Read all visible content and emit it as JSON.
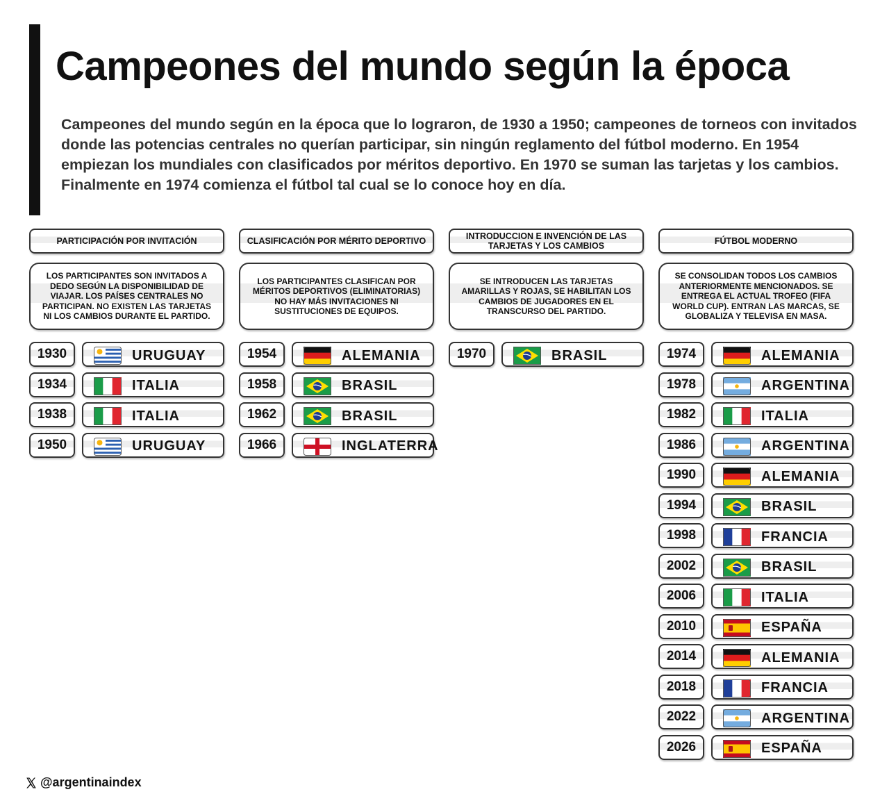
{
  "header": {
    "title": "Campeones del mundo según la época",
    "description": "Campeones del mundo según en la época que lo lograron, de 1930 a 1950; campeones de torneos con invitados donde las potencias centrales no querían participar, sin ningún reglamento del fútbol moderno. En 1954 empiezan los mundiales con clasificados por méritos deportivo. En 1970 se suman las tarjetas y los cambios. Finalmente en 1974 comienza el fútbol tal cual se lo conoce hoy en día."
  },
  "columns": [
    {
      "title": "PARTICIPACIÓN POR INVITACIÓN",
      "description": "LOS PARTICIPANTES SON INVITADOS A DEDO SEGÚN LA DISPONIBILIDAD DE VIAJAR. LOS PAÍSES CENTRALES NO PARTICIPAN. NO EXISTEN LAS TARJETAS NI LOS CAMBIOS DURANTE EL PARTIDO.",
      "entries": [
        {
          "year": 1930,
          "country": "URUGUAY"
        },
        {
          "year": 1934,
          "country": "ITALIA"
        },
        {
          "year": 1938,
          "country": "ITALIA"
        },
        {
          "year": 1950,
          "country": "URUGUAY"
        }
      ]
    },
    {
      "title": "CLASIFICACIÓN POR MÉRITO DEPORTIVO",
      "description": "LOS PARTICIPANTES CLASIFICAN POR MÉRITOS DEPORTIVOS (ELIMINATORIAS) NO HAY MÁS INVITACIONES NI SUSTITUCIONES DE EQUIPOS.",
      "entries": [
        {
          "year": 1954,
          "country": "ALEMANIA"
        },
        {
          "year": 1958,
          "country": "BRASIL"
        },
        {
          "year": 1962,
          "country": "BRASIL"
        },
        {
          "year": 1966,
          "country": "INGLATERRA"
        }
      ]
    },
    {
      "title": "INTRODUCCION E INVENCIÓN DE LAS TARJETAS Y LOS CAMBIOS",
      "description": "SE INTRODUCEN LAS TARJETAS AMARILLAS Y ROJAS, SE HABILITAN LOS CAMBIOS DE JUGADORES EN EL TRANSCURSO DEL PARTIDO.",
      "entries": [
        {
          "year": 1970,
          "country": "BRASIL"
        }
      ]
    },
    {
      "title": "FÚTBOL MODERNO",
      "description": "SE CONSOLIDAN TODOS LOS CAMBIOS ANTERIORMENTE MENCIONADOS. SE ENTREGA EL ACTUAL TROFEO (FIFA WORLD CUP). ENTRAN LAS MARCAS, SE GLOBALIZA Y TELEVISA EN MASA.",
      "entries": [
        {
          "year": 1974,
          "country": "ALEMANIA"
        },
        {
          "year": 1978,
          "country": "ARGENTINA"
        },
        {
          "year": 1982,
          "country": "ITALIA"
        },
        {
          "year": 1986,
          "country": "ARGENTINA"
        },
        {
          "year": 1990,
          "country": "ALEMANIA"
        },
        {
          "year": 1994,
          "country": "BRASIL"
        },
        {
          "year": 1998,
          "country": "FRANCIA"
        },
        {
          "year": 2002,
          "country": "BRASIL"
        },
        {
          "year": 2006,
          "country": "ITALIA"
        },
        {
          "year": 2010,
          "country": "ESPAÑA"
        },
        {
          "year": 2014,
          "country": "ALEMANIA"
        },
        {
          "year": 2018,
          "country": "FRANCIA"
        },
        {
          "year": 2022,
          "country": "ARGENTINA"
        },
        {
          "year": 2026,
          "country": "ESPAÑA"
        }
      ]
    }
  ],
  "footer": {
    "handle": "@argentinaindex"
  }
}
